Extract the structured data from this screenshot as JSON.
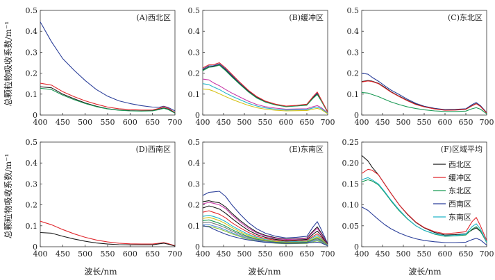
{
  "figure": {
    "ylabel": "总颗粒物吸收系数/m⁻¹",
    "xlabel": "波长/nm"
  },
  "colors": {
    "west_north": "#1a1a1a",
    "buffer": "#e0282e",
    "east_north": "#1a9a55",
    "west_south": "#2b3f9a",
    "east_south": "#22b5c8",
    "extra_series": [
      "#1a1a1a",
      "#e0282e",
      "#1a9a55",
      "#2b3f9a",
      "#22b5c8",
      "#c83aa8",
      "#d7c21a",
      "#7a7a7a",
      "#5a8fd8",
      "#8cc63f"
    ]
  },
  "chart_data": [
    {
      "type": "line",
      "title": "(A)西北区",
      "xlim": [
        400,
        700
      ],
      "ylim": [
        0,
        0.5
      ],
      "xticks": [
        400,
        450,
        500,
        550,
        600,
        650,
        700
      ],
      "yticks": [
        0,
        0.1,
        0.2,
        0.3,
        0.4,
        0.5
      ],
      "ytick_labels": [
        "0",
        "0.1",
        "0.2",
        "0.3",
        "0.4",
        "0.5"
      ],
      "x": [
        400,
        425,
        450,
        475,
        500,
        525,
        550,
        575,
        600,
        625,
        650,
        665,
        675,
        685,
        700
      ],
      "series": [
        {
          "color_key": "west_south",
          "values": [
            0.445,
            0.35,
            0.27,
            0.215,
            0.165,
            0.122,
            0.09,
            0.068,
            0.055,
            0.045,
            0.038,
            0.037,
            0.042,
            0.036,
            0.02
          ]
        },
        {
          "color_key": "buffer",
          "values": [
            0.152,
            0.143,
            0.112,
            0.088,
            0.068,
            0.052,
            0.038,
            0.03,
            0.026,
            0.024,
            0.024,
            0.032,
            0.04,
            0.032,
            0.012
          ]
        },
        {
          "color_key": "west_north",
          "values": [
            0.135,
            0.13,
            0.1,
            0.078,
            0.058,
            0.042,
            0.03,
            0.024,
            0.021,
            0.02,
            0.021,
            0.028,
            0.034,
            0.028,
            0.01
          ]
        },
        {
          "color_key": "east_north",
          "values": [
            0.128,
            0.122,
            0.095,
            0.074,
            0.055,
            0.04,
            0.029,
            0.023,
            0.02,
            0.019,
            0.02,
            0.026,
            0.032,
            0.026,
            0.009
          ]
        }
      ]
    },
    {
      "type": "line",
      "title": "(B)缓冲区",
      "xlim": [
        400,
        700
      ],
      "ylim": [
        0,
        0.5
      ],
      "xticks": [
        400,
        450,
        500,
        550,
        600,
        650,
        700
      ],
      "yticks": [
        0,
        0.1,
        0.2,
        0.3,
        0.4,
        0.5
      ],
      "ytick_labels": [
        "0",
        "0.1",
        "0.2",
        "0.3",
        "0.4",
        "0.5"
      ],
      "x": [
        400,
        415,
        425,
        440,
        455,
        470,
        490,
        510,
        530,
        550,
        575,
        600,
        625,
        650,
        665,
        675,
        685,
        700
      ],
      "series": [
        {
          "color_key": "west_south",
          "values": [
            0.22,
            0.235,
            0.235,
            0.245,
            0.22,
            0.19,
            0.15,
            0.115,
            0.085,
            0.065,
            0.05,
            0.042,
            0.045,
            0.05,
            0.085,
            0.105,
            0.07,
            0.015
          ]
        },
        {
          "color_key": "west_north",
          "values": [
            0.215,
            0.23,
            0.232,
            0.24,
            0.215,
            0.185,
            0.147,
            0.112,
            0.083,
            0.063,
            0.049,
            0.041,
            0.044,
            0.048,
            0.082,
            0.1,
            0.068,
            0.014
          ]
        },
        {
          "color_key": "east_north",
          "values": [
            0.212,
            0.228,
            0.23,
            0.238,
            0.212,
            0.182,
            0.145,
            0.11,
            0.081,
            0.062,
            0.048,
            0.04,
            0.043,
            0.047,
            0.08,
            0.098,
            0.066,
            0.013
          ]
        },
        {
          "color_key": "buffer",
          "values": [
            0.225,
            0.24,
            0.24,
            0.25,
            0.225,
            0.195,
            0.155,
            0.118,
            0.088,
            0.067,
            0.052,
            0.043,
            0.046,
            0.052,
            0.088,
            0.11,
            0.072,
            0.016
          ]
        },
        {
          "color_key": "extra_5",
          "values": [
            0.172,
            0.168,
            0.155,
            0.14,
            0.122,
            0.105,
            0.085,
            0.066,
            0.05,
            0.04,
            0.033,
            0.028,
            0.029,
            0.03,
            0.04,
            0.045,
            0.035,
            0.01
          ]
        },
        {
          "color_key": "east_south",
          "values": [
            0.15,
            0.145,
            0.135,
            0.122,
            0.105,
            0.09,
            0.073,
            0.056,
            0.043,
            0.034,
            0.028,
            0.024,
            0.025,
            0.026,
            0.034,
            0.038,
            0.03,
            0.008
          ]
        },
        {
          "color_key": "extra_6",
          "values": [
            0.125,
            0.122,
            0.115,
            0.102,
            0.088,
            0.075,
            0.06,
            0.046,
            0.035,
            0.028,
            0.023,
            0.02,
            0.021,
            0.022,
            0.028,
            0.032,
            0.025,
            0.006
          ]
        }
      ]
    },
    {
      "type": "line",
      "title": "(C)东北区",
      "xlim": [
        400,
        700
      ],
      "ylim": [
        0,
        0.5
      ],
      "xticks": [
        400,
        450,
        500,
        550,
        600,
        650,
        700
      ],
      "yticks": [
        0,
        0.1,
        0.2,
        0.3,
        0.4,
        0.5
      ],
      "ytick_labels": [
        "0",
        "0.1",
        "0.2",
        "0.3",
        "0.4",
        "0.5"
      ],
      "x": [
        400,
        415,
        425,
        440,
        455,
        470,
        490,
        510,
        530,
        550,
        575,
        600,
        625,
        650,
        665,
        675,
        685,
        700
      ],
      "series": [
        {
          "color_key": "west_south",
          "values": [
            0.2,
            0.195,
            0.18,
            0.162,
            0.14,
            0.12,
            0.098,
            0.075,
            0.056,
            0.042,
            0.032,
            0.026,
            0.027,
            0.03,
            0.05,
            0.06,
            0.045,
            0.012
          ]
        },
        {
          "color_key": "west_north",
          "values": [
            0.16,
            0.165,
            0.162,
            0.152,
            0.133,
            0.112,
            0.09,
            0.07,
            0.052,
            0.04,
            0.03,
            0.024,
            0.025,
            0.028,
            0.045,
            0.055,
            0.042,
            0.01
          ]
        },
        {
          "color_key": "buffer",
          "values": [
            0.158,
            0.163,
            0.16,
            0.15,
            0.13,
            0.11,
            0.088,
            0.068,
            0.05,
            0.039,
            0.029,
            0.023,
            0.024,
            0.027,
            0.044,
            0.054,
            0.041,
            0.01
          ]
        },
        {
          "color_key": "east_north",
          "values": [
            0.108,
            0.105,
            0.098,
            0.088,
            0.075,
            0.063,
            0.05,
            0.039,
            0.031,
            0.025,
            0.02,
            0.017,
            0.017,
            0.019,
            0.03,
            0.035,
            0.028,
            0.006
          ]
        }
      ]
    },
    {
      "type": "line",
      "title": "(D)西南区",
      "xlim": [
        400,
        700
      ],
      "ylim": [
        0,
        0.5
      ],
      "xticks": [
        400,
        450,
        500,
        550,
        600,
        650,
        700
      ],
      "yticks": [
        0,
        0.1,
        0.2,
        0.3,
        0.4,
        0.5
      ],
      "ytick_labels": [
        "0",
        "0.1",
        "0.2",
        "0.3",
        "0.4",
        "0.5"
      ],
      "x": [
        400,
        425,
        450,
        475,
        500,
        525,
        550,
        575,
        600,
        625,
        650,
        665,
        675,
        685,
        700
      ],
      "series": [
        {
          "color_key": "buffer",
          "values": [
            0.122,
            0.105,
            0.082,
            0.062,
            0.045,
            0.032,
            0.023,
            0.017,
            0.014,
            0.013,
            0.013,
            0.017,
            0.02,
            0.015,
            0.005
          ]
        },
        {
          "color_key": "west_north",
          "values": [
            0.068,
            0.065,
            0.05,
            0.037,
            0.026,
            0.018,
            0.013,
            0.01,
            0.009,
            0.009,
            0.009,
            0.014,
            0.017,
            0.012,
            0.003
          ]
        }
      ]
    },
    {
      "type": "line",
      "title": "(E)东南区",
      "xlim": [
        400,
        700
      ],
      "ylim": [
        0,
        0.5
      ],
      "xticks": [
        400,
        450,
        500,
        550,
        600,
        650,
        700
      ],
      "yticks": [
        0,
        0.1,
        0.2,
        0.3,
        0.4,
        0.5
      ],
      "ytick_labels": [
        "0",
        "0.1",
        "0.2",
        "0.3",
        "0.4",
        "0.5"
      ],
      "x": [
        400,
        415,
        425,
        440,
        455,
        470,
        490,
        510,
        530,
        550,
        575,
        600,
        625,
        650,
        665,
        675,
        685,
        700
      ],
      "series": [
        {
          "color_key": "west_south",
          "values": [
            0.245,
            0.26,
            0.262,
            0.265,
            0.24,
            0.2,
            0.155,
            0.115,
            0.085,
            0.065,
            0.05,
            0.042,
            0.045,
            0.05,
            0.095,
            0.12,
            0.08,
            0.015
          ]
        },
        {
          "color_key": "extra_0",
          "values": [
            0.215,
            0.22,
            0.215,
            0.21,
            0.19,
            0.16,
            0.125,
            0.095,
            0.07,
            0.055,
            0.043,
            0.036,
            0.038,
            0.042,
            0.075,
            0.095,
            0.065,
            0.012
          ]
        },
        {
          "color_key": "extra_5",
          "values": [
            0.205,
            0.212,
            0.208,
            0.2,
            0.182,
            0.152,
            0.118,
            0.088,
            0.066,
            0.051,
            0.04,
            0.034,
            0.036,
            0.04,
            0.07,
            0.088,
            0.06,
            0.011
          ]
        },
        {
          "color_key": "west_north",
          "values": [
            0.185,
            0.195,
            0.19,
            0.18,
            0.16,
            0.135,
            0.105,
            0.078,
            0.058,
            0.045,
            0.035,
            0.03,
            0.032,
            0.035,
            0.06,
            0.075,
            0.052,
            0.01
          ]
        },
        {
          "color_key": "buffer",
          "values": [
            0.165,
            0.172,
            0.165,
            0.155,
            0.138,
            0.115,
            0.09,
            0.068,
            0.05,
            0.039,
            0.031,
            0.026,
            0.028,
            0.031,
            0.05,
            0.062,
            0.044,
            0.009
          ]
        },
        {
          "color_key": "east_south",
          "values": [
            0.145,
            0.15,
            0.145,
            0.135,
            0.12,
            0.1,
            0.078,
            0.059,
            0.044,
            0.034,
            0.027,
            0.023,
            0.025,
            0.027,
            0.044,
            0.054,
            0.038,
            0.008
          ]
        },
        {
          "color_key": "extra_6",
          "values": [
            0.135,
            0.14,
            0.135,
            0.125,
            0.11,
            0.092,
            0.071,
            0.054,
            0.04,
            0.031,
            0.025,
            0.021,
            0.022,
            0.024,
            0.038,
            0.047,
            0.034,
            0.007
          ]
        },
        {
          "color_key": "east_north",
          "values": [
            0.125,
            0.128,
            0.122,
            0.112,
            0.098,
            0.082,
            0.064,
            0.048,
            0.036,
            0.028,
            0.022,
            0.019,
            0.02,
            0.022,
            0.034,
            0.042,
            0.03,
            0.006
          ]
        },
        {
          "color_key": "extra_7",
          "values": [
            0.115,
            0.118,
            0.112,
            0.102,
            0.09,
            0.075,
            0.058,
            0.044,
            0.033,
            0.026,
            0.02,
            0.017,
            0.018,
            0.02,
            0.03,
            0.037,
            0.027,
            0.005
          ]
        },
        {
          "color_key": "extra_8",
          "values": [
            0.105,
            0.106,
            0.1,
            0.092,
            0.08,
            0.067,
            0.052,
            0.039,
            0.029,
            0.023,
            0.018,
            0.015,
            0.016,
            0.018,
            0.026,
            0.032,
            0.024,
            0.004
          ]
        },
        {
          "color_key": "extra_9",
          "values": [
            0.098,
            0.098,
            0.093,
            0.085,
            0.074,
            0.062,
            0.048,
            0.036,
            0.027,
            0.021,
            0.017,
            0.014,
            0.015,
            0.016,
            0.023,
            0.028,
            0.021,
            0.004
          ]
        },
        {
          "color_key": "extra_3",
          "values": [
            0.1,
            0.095,
            0.085,
            0.072,
            0.06,
            0.05,
            0.04,
            0.032,
            0.026,
            0.021,
            0.018,
            0.016,
            0.017,
            0.018,
            0.02,
            0.022,
            0.018,
            0.004
          ]
        }
      ]
    },
    {
      "type": "line",
      "title": "(F)区域平均",
      "xlim": [
        400,
        700
      ],
      "ylim": [
        0,
        0.25
      ],
      "xticks": [
        400,
        450,
        500,
        550,
        600,
        650,
        700
      ],
      "yticks": [
        0,
        0.05,
        0.1,
        0.15,
        0.2,
        0.25
      ],
      "ytick_labels": [
        "0",
        "0.05",
        "0.10",
        "0.15",
        "0.20",
        "0.25"
      ],
      "legend": "top-right",
      "x": [
        400,
        415,
        425,
        440,
        455,
        470,
        490,
        510,
        530,
        550,
        575,
        600,
        625,
        650,
        665,
        675,
        685,
        700
      ],
      "series": [
        {
          "name": "西北区",
          "color_key": "west_north",
          "values": [
            0.218,
            0.205,
            0.19,
            0.172,
            0.15,
            0.128,
            0.1,
            0.077,
            0.058,
            0.045,
            0.034,
            0.028,
            0.029,
            0.031,
            0.04,
            0.045,
            0.037,
            0.012
          ]
        },
        {
          "name": "缓冲区",
          "color_key": "buffer",
          "values": [
            0.175,
            0.185,
            0.183,
            0.172,
            0.15,
            0.128,
            0.1,
            0.078,
            0.059,
            0.046,
            0.036,
            0.031,
            0.033,
            0.036,
            0.06,
            0.07,
            0.05,
            0.015
          ]
        },
        {
          "name": "东北区",
          "color_key": "east_north",
          "values": [
            0.155,
            0.16,
            0.157,
            0.148,
            0.13,
            0.11,
            0.086,
            0.066,
            0.05,
            0.039,
            0.03,
            0.025,
            0.026,
            0.028,
            0.042,
            0.048,
            0.038,
            0.01
          ]
        },
        {
          "name": "西南区",
          "color_key": "west_south",
          "values": [
            0.095,
            0.087,
            0.078,
            0.065,
            0.053,
            0.043,
            0.033,
            0.025,
            0.019,
            0.015,
            0.012,
            0.01,
            0.01,
            0.011,
            0.017,
            0.02,
            0.016,
            0.004
          ]
        },
        {
          "name": "东南区",
          "color_key": "east_south",
          "values": [
            0.16,
            0.165,
            0.16,
            0.15,
            0.132,
            0.112,
            0.088,
            0.067,
            0.05,
            0.039,
            0.031,
            0.026,
            0.027,
            0.03,
            0.048,
            0.055,
            0.042,
            0.011
          ]
        }
      ]
    }
  ]
}
